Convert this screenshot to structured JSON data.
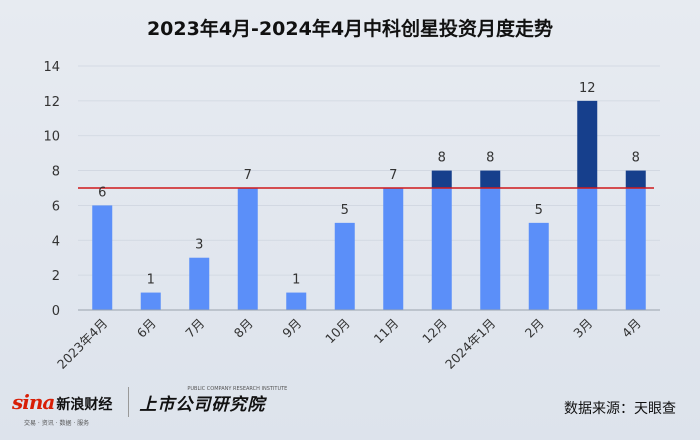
{
  "chart_data": {
    "type": "bar",
    "title": "2023年4月-2024年4月中科创星投资月度走势",
    "categories": [
      "2023年4月",
      "6月",
      "7月",
      "8月",
      "9月",
      "10月",
      "11月",
      "12月",
      "2024年1月",
      "2月",
      "3月",
      "4月"
    ],
    "values": [
      6,
      1,
      3,
      7,
      1,
      5,
      7,
      8,
      8,
      5,
      12,
      8
    ],
    "ylim": [
      0,
      14
    ],
    "yticks": [
      0,
      2,
      4,
      6,
      8,
      10,
      12,
      14
    ],
    "reference_line": 7,
    "colors": {
      "bar": "#5b8ff9",
      "bar_above_line": "#163f8c",
      "reference_line": "#d0191b"
    },
    "grid": true,
    "legend": "none"
  },
  "footer": {
    "sina_logo": "sina",
    "sina_name": "新浪财经",
    "sina_tagline": "交易 · 资讯 · 数据 · 服务",
    "institute_name": "上市公司研究院",
    "institute_en": "PUBLIC COMPANY RESEARCH INSTITUTE",
    "source": "数据来源：天眼查"
  }
}
